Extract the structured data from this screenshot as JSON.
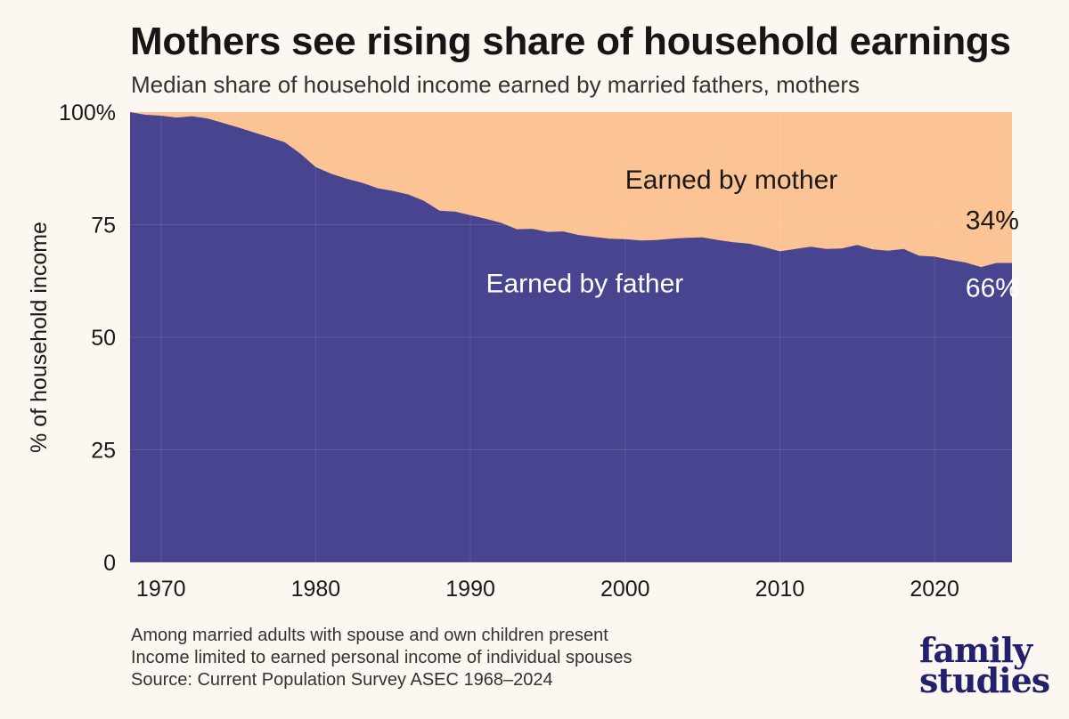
{
  "header": {
    "title": "Mothers see rising share of household earnings",
    "subtitle": "Median share of household income earned by married fathers, mothers"
  },
  "footnotes": [
    "Among married adults with spouse and own children present",
    "Income limited to earned personal income of individual spouses",
    "Source: Current Population Survey ASEC 1968–2024"
  ],
  "logo": {
    "line1": "family",
    "line2": "studies"
  },
  "colors": {
    "father": "#48448f",
    "mother": "#fcc394",
    "background": "#fcf7f1"
  },
  "chart_data": {
    "type": "area",
    "stacked": true,
    "title": "Mothers see rising share of household earnings",
    "subtitle": "Median share of household income earned by married fathers, mothers",
    "xlabel": "",
    "ylabel": "% of household income",
    "xlim": [
      1968,
      2025
    ],
    "ylim": [
      0,
      100
    ],
    "x_ticks": [
      "1970",
      "1980",
      "1990",
      "2000",
      "2010",
      "2020"
    ],
    "x_tick_values": [
      1970,
      1980,
      1990,
      2000,
      2010,
      2020
    ],
    "y_ticks": [
      "0",
      "25",
      "50",
      "75",
      "100%"
    ],
    "y_tick_values": [
      0,
      25,
      50,
      75,
      100
    ],
    "grid": true,
    "x": [
      1968,
      1969,
      1970,
      1971,
      1972,
      1973,
      1974,
      1975,
      1976,
      1977,
      1978,
      1979,
      1980,
      1981,
      1982,
      1983,
      1984,
      1985,
      1986,
      1987,
      1988,
      1989,
      1990,
      1991,
      1992,
      1993,
      1994,
      1995,
      1996,
      1997,
      1998,
      1999,
      2000,
      2001,
      2002,
      2003,
      2004,
      2005,
      2006,
      2007,
      2008,
      2009,
      2010,
      2011,
      2012,
      2013,
      2014,
      2015,
      2016,
      2017,
      2018,
      2019,
      2020,
      2021,
      2022,
      2023,
      2024,
      2025
    ],
    "series": [
      {
        "name": "Earned by father",
        "values": [
          100,
          99.4,
          99.2,
          98.8,
          99.1,
          98.6,
          97.6,
          96.6,
          95.5,
          94.4,
          93.3,
          90.8,
          87.8,
          86.3,
          85.2,
          84.3,
          83.1,
          82.5,
          81.7,
          80.3,
          78.1,
          77.9,
          77.1,
          76.3,
          75.4,
          74.0,
          74.1,
          73.4,
          73.5,
          72.7,
          72.3,
          71.9,
          71.8,
          71.5,
          71.6,
          71.9,
          72.1,
          72.2,
          71.6,
          71.1,
          70.8,
          70.0,
          69.1,
          69.6,
          70.1,
          69.6,
          69.7,
          70.5,
          69.5,
          69.2,
          69.6,
          68.1,
          67.9,
          67.2,
          66.6,
          65.6,
          66.5,
          66.5
        ]
      },
      {
        "name": "Earned by mother",
        "values": [
          0,
          0.6,
          0.8,
          1.2,
          0.9,
          1.4,
          2.4,
          3.4,
          4.5,
          5.6,
          6.7,
          9.2,
          12.2,
          13.7,
          14.8,
          15.7,
          16.9,
          17.5,
          18.3,
          19.7,
          21.9,
          22.1,
          22.9,
          23.7,
          24.6,
          26.0,
          25.9,
          26.6,
          26.5,
          27.3,
          27.7,
          28.1,
          28.2,
          28.5,
          28.4,
          28.1,
          27.9,
          27.8,
          28.4,
          28.9,
          29.2,
          30.0,
          30.9,
          30.4,
          29.9,
          30.4,
          30.3,
          29.5,
          30.5,
          30.8,
          30.4,
          31.9,
          32.1,
          32.8,
          33.4,
          34.4,
          33.5,
          33.5
        ]
      }
    ],
    "annotations": [
      {
        "text": "Earned by mother",
        "x": 2000,
        "y": 83
      },
      {
        "text": "Earned by father",
        "x": 1991,
        "y": 60
      },
      {
        "text": "34%",
        "x": 2022,
        "y": 74
      },
      {
        "text": "66%",
        "x": 2022,
        "y": 59
      }
    ]
  }
}
